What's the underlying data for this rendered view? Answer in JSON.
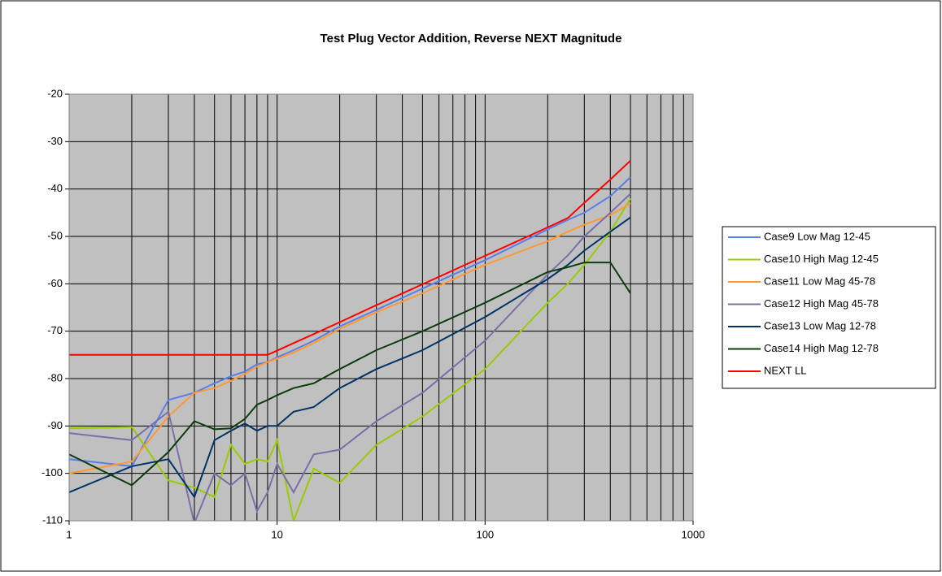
{
  "chart_data": {
    "type": "line",
    "title": "Test Plug Vector Addition, Reverse NEXT Magnitude",
    "x": [
      1,
      2,
      3,
      4,
      5,
      6,
      7,
      8,
      9,
      10,
      12,
      15,
      20,
      30,
      50,
      100,
      200,
      250,
      300,
      400,
      500
    ],
    "xlim": [
      1,
      1000
    ],
    "xticks": [
      1,
      10,
      100,
      1000
    ],
    "xscale": "log",
    "ylim": [
      -110,
      -20
    ],
    "yticks": [
      -110,
      -100,
      -90,
      -80,
      -70,
      -60,
      -50,
      -40,
      -30,
      -20
    ],
    "grid": true,
    "legend": "right",
    "series": [
      {
        "name": "Case9 Low Mag 12-45",
        "color": "#5b7fe8",
        "values": [
          -97,
          -98.5,
          -84.5,
          -83,
          -81,
          -79.5,
          -78.5,
          -77,
          -76.5,
          -75.5,
          -74,
          -72,
          -69,
          -65.5,
          -61,
          -55,
          -48.5,
          -46.5,
          -45,
          -41.5,
          -37.5
        ]
      },
      {
        "name": "Case10 High Mag 12-45",
        "color": "#99cc00",
        "values": [
          -90.5,
          -90.2,
          -101.5,
          -103,
          -105,
          -94,
          -98,
          -97,
          -97.5,
          -93,
          -110,
          -99,
          -102,
          -94,
          -88,
          -78,
          -64,
          -60,
          -56,
          -49,
          -42
        ]
      },
      {
        "name": "Case11 Low Mag 45-78",
        "color": "#ff9933",
        "values": [
          -100,
          -97.5,
          -88,
          -83,
          -82,
          -80.5,
          -79,
          -77.5,
          -76.5,
          -75.8,
          -74.5,
          -72.5,
          -69.5,
          -66,
          -62,
          -56,
          -51,
          -49,
          -47.5,
          -45.5,
          -43
        ]
      },
      {
        "name": "Case12 High Mag 45-78",
        "color": "#7b6fa8",
        "values": [
          -91.5,
          -93,
          -87,
          -110.5,
          -100,
          -102.5,
          -100,
          -108,
          -104,
          -98,
          -104,
          -96,
          -95,
          -89,
          -83,
          -72,
          -58,
          -54,
          -50,
          -45,
          -41
        ]
      },
      {
        "name": "Case13 Low Mag 12-78",
        "color": "#003366",
        "values": [
          -104,
          -98.5,
          -97,
          -105,
          -93,
          -91,
          -89.5,
          -91,
          -90,
          -90,
          -87,
          -86,
          -82,
          -78,
          -74,
          -67,
          -59,
          -56,
          -53,
          -49,
          -46
        ]
      },
      {
        "name": "Case14 High Mag 12-78",
        "color": "#0d3d0d",
        "values": [
          -96,
          -102.5,
          -95.5,
          -89,
          -90.7,
          -90.5,
          -88.5,
          -85.5,
          -84.5,
          -83.5,
          -82,
          -81,
          -78,
          -74,
          -70,
          -64,
          -57.5,
          -56.5,
          -55.5,
          -55.5,
          -62
        ]
      },
      {
        "name": "NEXT LL",
        "color": "#ff0000",
        "values": [
          -75,
          -75,
          -75,
          -75,
          -75,
          -75,
          -75,
          -75,
          -75,
          -74.1,
          -72.5,
          -70.6,
          -68.1,
          -64.5,
          -60.1,
          -54.1,
          -48.1,
          -46.1,
          -42.9,
          -38,
          -34
        ]
      }
    ]
  }
}
